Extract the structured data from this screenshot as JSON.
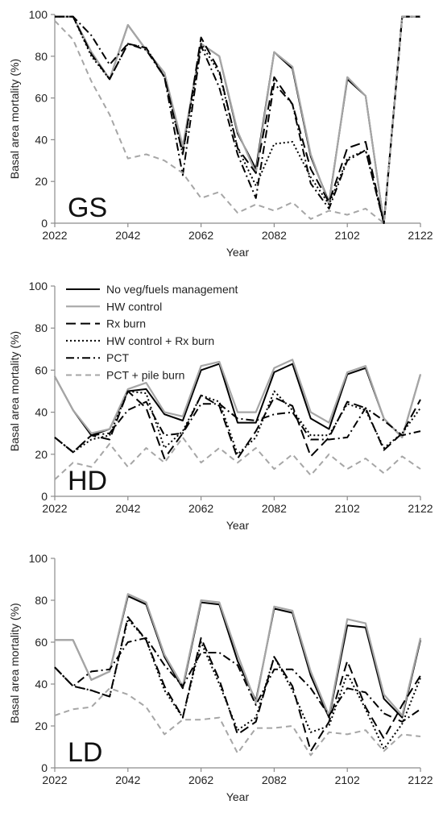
{
  "series_styles": [
    {
      "name": "No veg/fuels management",
      "color": "#000000",
      "dash": "",
      "width": 2
    },
    {
      "name": "HW control",
      "color": "#a6a6a6",
      "dash": "",
      "width": 2.2
    },
    {
      "name": "Rx burn",
      "color": "#000000",
      "dash": "12,6",
      "width": 2
    },
    {
      "name": "HW control + Rx burn",
      "color": "#000000",
      "dash": "2,3",
      "width": 2
    },
    {
      "name": "PCT",
      "color": "#000000",
      "dash": "10,4,2,4",
      "width": 2
    },
    {
      "name": "PCT + pile burn",
      "color": "#a6a6a6",
      "dash": "7,5",
      "width": 2
    }
  ],
  "chart_data": [
    {
      "type": "line",
      "panel_label": "GS",
      "xlabel": "Year",
      "ylabel": "Basal area mortality (%)",
      "xlim": [
        2022,
        2122
      ],
      "ylim": [
        0,
        100
      ],
      "xticks": [
        2022,
        2042,
        2062,
        2082,
        2102,
        2122
      ],
      "yticks": [
        0,
        20,
        40,
        60,
        80,
        100
      ],
      "legend": false,
      "x": [
        2022,
        2027,
        2032,
        2037,
        2042,
        2047,
        2052,
        2057,
        2062,
        2067,
        2072,
        2077,
        2082,
        2087,
        2092,
        2097,
        2102,
        2107,
        2112,
        2117,
        2122
      ],
      "series": [
        {
          "name": "No veg/fuels management",
          "values": [
            99,
            99,
            82,
            69,
            95,
            83,
            72,
            36,
            86,
            80,
            43,
            26,
            82,
            74,
            32,
            10,
            69,
            61,
            0,
            99,
            99
          ]
        },
        {
          "name": "HW control",
          "values": [
            99,
            99,
            82,
            69,
            95,
            83,
            72,
            37,
            86,
            80,
            44,
            24,
            82,
            75,
            33,
            9,
            70,
            61,
            0,
            99,
            99
          ]
        },
        {
          "name": "Rx burn",
          "values": [
            99,
            99,
            81,
            69,
            86,
            84,
            70,
            33,
            89,
            73,
            36,
            24,
            70,
            57,
            26,
            10,
            36,
            39,
            0,
            99,
            99
          ]
        },
        {
          "name": "HW control + Rx burn",
          "values": [
            99,
            99,
            80,
            69,
            86,
            84,
            70,
            33,
            86,
            72,
            36,
            18,
            38,
            39,
            22,
            9,
            31,
            35,
            0,
            99,
            99
          ]
        },
        {
          "name": "PCT",
          "values": [
            99,
            99,
            90,
            76,
            86,
            83,
            70,
            23,
            85,
            65,
            33,
            12,
            67,
            57,
            19,
            7,
            30,
            35,
            0,
            99,
            99
          ]
        },
        {
          "name": "PCT + pile burn",
          "values": [
            97,
            88,
            68,
            52,
            31,
            33,
            30,
            24,
            12,
            15,
            5,
            9,
            6,
            10,
            2,
            6,
            4,
            7,
            0,
            99,
            99
          ]
        }
      ]
    },
    {
      "type": "line",
      "panel_label": "HD",
      "xlabel": "Year",
      "ylabel": "Basal area mortality (%)",
      "xlim": [
        2022,
        2122
      ],
      "ylim": [
        0,
        100
      ],
      "xticks": [
        2022,
        2042,
        2062,
        2082,
        2102,
        2122
      ],
      "yticks": [
        0,
        20,
        40,
        60,
        80,
        100
      ],
      "legend": true,
      "legend_position": "top-left",
      "x": [
        2022,
        2027,
        2032,
        2037,
        2042,
        2047,
        2052,
        2057,
        2062,
        2067,
        2072,
        2077,
        2082,
        2087,
        2092,
        2097,
        2102,
        2107,
        2112,
        2117,
        2122
      ],
      "series": [
        {
          "name": "No veg/fuels management",
          "values": [
            57,
            41,
            29,
            32,
            50,
            51,
            39,
            36,
            60,
            63,
            35,
            35,
            59,
            63,
            37,
            32,
            58,
            61,
            37,
            28,
            58
          ]
        },
        {
          "name": "HW control",
          "values": [
            57,
            41,
            30,
            32,
            51,
            54,
            40,
            38,
            62,
            64,
            40,
            40,
            61,
            65,
            40,
            35,
            59,
            62,
            37,
            28,
            58
          ]
        },
        {
          "name": "Rx burn",
          "values": [
            28,
            21,
            29,
            27,
            50,
            42,
            18,
            30,
            48,
            43,
            18,
            31,
            47,
            43,
            19,
            28,
            45,
            42,
            22,
            30,
            46
          ]
        },
        {
          "name": "HW control + Rx burn",
          "values": [
            28,
            21,
            27,
            29,
            50,
            49,
            23,
            31,
            48,
            45,
            20,
            28,
            50,
            41,
            29,
            29,
            44,
            41,
            23,
            30,
            42
          ]
        },
        {
          "name": "PCT",
          "values": [
            28,
            21,
            29,
            30,
            41,
            45,
            29,
            30,
            44,
            44,
            37,
            36,
            39,
            40,
            27,
            27,
            28,
            42,
            36,
            29,
            31
          ]
        },
        {
          "name": "PCT + pile burn",
          "values": [
            8,
            16,
            14,
            25,
            14,
            23,
            16,
            28,
            16,
            23,
            16,
            23,
            13,
            20,
            10,
            20,
            13,
            18,
            11,
            19,
            13
          ]
        }
      ]
    },
    {
      "type": "line",
      "panel_label": "LD",
      "xlabel": "Year",
      "ylabel": "Basal area mortality (%)",
      "xlim": [
        2022,
        2122
      ],
      "ylim": [
        0,
        100
      ],
      "xticks": [
        2022,
        2042,
        2062,
        2082,
        2102,
        2122
      ],
      "yticks": [
        0,
        20,
        40,
        60,
        80,
        100
      ],
      "legend": false,
      "x": [
        2022,
        2027,
        2032,
        2037,
        2042,
        2047,
        2052,
        2057,
        2062,
        2067,
        2072,
        2077,
        2082,
        2087,
        2092,
        2097,
        2102,
        2107,
        2112,
        2117,
        2122
      ],
      "series": [
        {
          "name": "No veg/fuels management",
          "values": [
            61,
            61,
            42,
            46,
            82,
            78,
            53,
            38,
            79,
            78,
            51,
            32,
            76,
            74,
            44,
            24,
            68,
            67,
            33,
            24,
            61
          ]
        },
        {
          "name": "HW control",
          "values": [
            61,
            61,
            42,
            46,
            83,
            79,
            54,
            39,
            80,
            79,
            54,
            31,
            77,
            75,
            46,
            25,
            71,
            69,
            35,
            25,
            62
          ]
        },
        {
          "name": "Rx burn",
          "values": [
            48,
            39,
            37,
            34,
            72,
            61,
            39,
            24,
            62,
            42,
            16,
            22,
            53,
            39,
            8,
            22,
            51,
            29,
            14,
            30,
            44
          ]
        },
        {
          "name": "HW control + Rx burn",
          "values": [
            48,
            39,
            37,
            34,
            71,
            61,
            37,
            24,
            60,
            40,
            18,
            24,
            53,
            37,
            17,
            20,
            45,
            28,
            9,
            21,
            43
          ]
        },
        {
          "name": "PCT",
          "values": [
            48,
            39,
            46,
            47,
            60,
            62,
            49,
            39,
            55,
            55,
            49,
            30,
            47,
            47,
            38,
            25,
            38,
            36,
            26,
            22,
            28
          ]
        },
        {
          "name": "PCT + pile burn",
          "values": [
            25,
            28,
            29,
            38,
            35,
            29,
            16,
            23,
            23,
            24,
            7,
            19,
            19,
            20,
            6,
            17,
            16,
            18,
            8,
            16,
            15
          ]
        }
      ]
    }
  ]
}
